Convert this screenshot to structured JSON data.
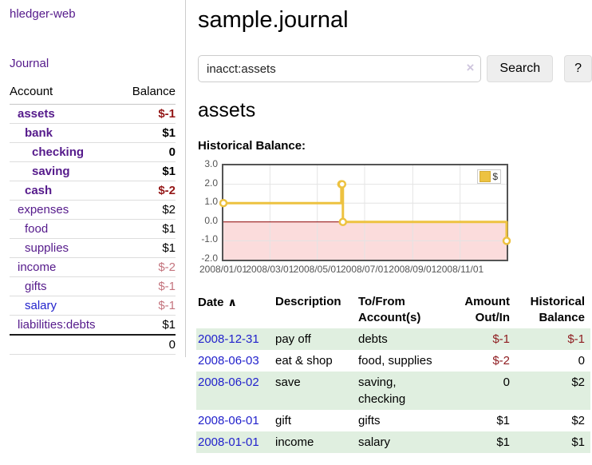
{
  "colors": {
    "link_purple": "#551a8b",
    "link_blue": "#2222cc",
    "negative_strong": "#941717",
    "negative_muted": "#c4747e",
    "row_shade_green": "#e0efe0"
  },
  "sidebar": {
    "app_title": "hledger-web",
    "nav_journal": "Journal",
    "accounts_table": {
      "headers": {
        "account": "Account",
        "balance": "Balance"
      },
      "rows": [
        {
          "name": "assets",
          "balance": "$-1",
          "depth": 0,
          "bold": true,
          "name_style": "purple",
          "balance_style": "neg-strong"
        },
        {
          "name": "bank",
          "balance": "$1",
          "depth": 1,
          "bold": true,
          "name_style": "purple",
          "balance_style": "pos"
        },
        {
          "name": "checking",
          "balance": "0",
          "depth": 2,
          "bold": true,
          "name_style": "purple",
          "balance_style": "pos"
        },
        {
          "name": "saving",
          "balance": "$1",
          "depth": 2,
          "bold": true,
          "name_style": "purple",
          "balance_style": "pos"
        },
        {
          "name": "cash",
          "balance": "$-2",
          "depth": 1,
          "bold": true,
          "name_style": "purple",
          "balance_style": "neg-strong"
        },
        {
          "name": "expenses",
          "balance": "$2",
          "depth": 0,
          "bold": false,
          "name_style": "purple",
          "balance_style": "pos"
        },
        {
          "name": "food",
          "balance": "$1",
          "depth": 1,
          "bold": false,
          "name_style": "purple",
          "balance_style": "pos"
        },
        {
          "name": "supplies",
          "balance": "$1",
          "depth": 1,
          "bold": false,
          "name_style": "purple",
          "balance_style": "pos"
        },
        {
          "name": "income",
          "balance": "$-2",
          "depth": 0,
          "bold": false,
          "name_style": "purple",
          "balance_style": "neg-muted"
        },
        {
          "name": "gifts",
          "balance": "$-1",
          "depth": 1,
          "bold": false,
          "name_style": "purple",
          "balance_style": "neg-muted"
        },
        {
          "name": "salary",
          "balance": "$-1",
          "depth": 1,
          "bold": false,
          "name_style": "blue",
          "balance_style": "neg-muted"
        },
        {
          "name": "liabilities:debts",
          "balance": "$1",
          "depth": 0,
          "bold": false,
          "name_style": "purple",
          "balance_style": "pos"
        }
      ],
      "total": "0"
    }
  },
  "main": {
    "title": "sample.journal",
    "search": {
      "value": "inacct:assets",
      "clear_icon": "×",
      "search_button": "Search",
      "help_button": "?"
    },
    "account_heading": "assets",
    "chart_heading": "Historical Balance:",
    "register_table": {
      "headers": {
        "date": "Date",
        "sort_indicator": "∧",
        "description": "Description",
        "accounts": [
          "To/From",
          "Account(s)"
        ],
        "amount": [
          "Amount",
          "Out/In"
        ],
        "balance": [
          "Historical",
          "Balance"
        ]
      },
      "rows": [
        {
          "date": "2008-12-31",
          "description": "pay off",
          "accounts": [
            "debts"
          ],
          "amount": "$-1",
          "amount_neg": true,
          "balance": "$-1",
          "balance_neg": true,
          "shaded": true
        },
        {
          "date": "2008-06-03",
          "description": "eat & shop",
          "accounts": [
            "food, supplies"
          ],
          "amount": "$-2",
          "amount_neg": true,
          "balance": "0",
          "balance_neg": false,
          "shaded": false
        },
        {
          "date": "2008-06-02",
          "description": "save",
          "accounts": [
            "saving,",
            "checking"
          ],
          "amount": "0",
          "amount_neg": false,
          "balance": "$2",
          "balance_neg": false,
          "shaded": true
        },
        {
          "date": "2008-06-01",
          "description": "gift",
          "accounts": [
            "gifts"
          ],
          "amount": "$1",
          "amount_neg": false,
          "balance": "$2",
          "balance_neg": false,
          "shaded": false
        },
        {
          "date": "2008-01-01",
          "description": "income",
          "accounts": [
            "salary"
          ],
          "amount": "$1",
          "amount_neg": false,
          "balance": "$1",
          "balance_neg": false,
          "shaded": true
        }
      ]
    }
  },
  "chart_data": {
    "type": "line",
    "steps": true,
    "title": "Historical Balance:",
    "series": [
      {
        "name": "$",
        "points": [
          {
            "x": "2008-01-01",
            "y": 1
          },
          {
            "x": "2008-06-01",
            "y": 2
          },
          {
            "x": "2008-06-02",
            "y": 2
          },
          {
            "x": "2008-06-03",
            "y": 0
          },
          {
            "x": "2008-12-31",
            "y": -1
          }
        ]
      }
    ],
    "xlim": [
      "2008-01-01",
      "2008-12-31"
    ],
    "ylim": [
      -2,
      3
    ],
    "yticks": [
      3.0,
      2.0,
      1.0,
      0.0,
      -1.0,
      -2.0
    ],
    "ytick_labels": [
      "3.0",
      "2.0",
      "1.0",
      "0.0",
      "-1.0",
      "-2.0"
    ],
    "xticks": [
      "2008-01-01",
      "2008-03-01",
      "2008-05-01",
      "2008-07-01",
      "2008-09-01",
      "2008-11-01"
    ],
    "xtick_labels": [
      "2008/01/01",
      "2008/03/01",
      "2008/05/01",
      "2008/07/01",
      "2008/09/01",
      "2008/11/01"
    ],
    "legend": "$",
    "legend_position": "top-right",
    "grid": true,
    "colors": {
      "line": "#edc240",
      "marker_fill": "#ffffff",
      "negative_region": "#fbdcdc",
      "zero_line": "#8b0000",
      "border": "#545454",
      "grid": "#e4e4e4",
      "tick_text": "#545454"
    }
  }
}
